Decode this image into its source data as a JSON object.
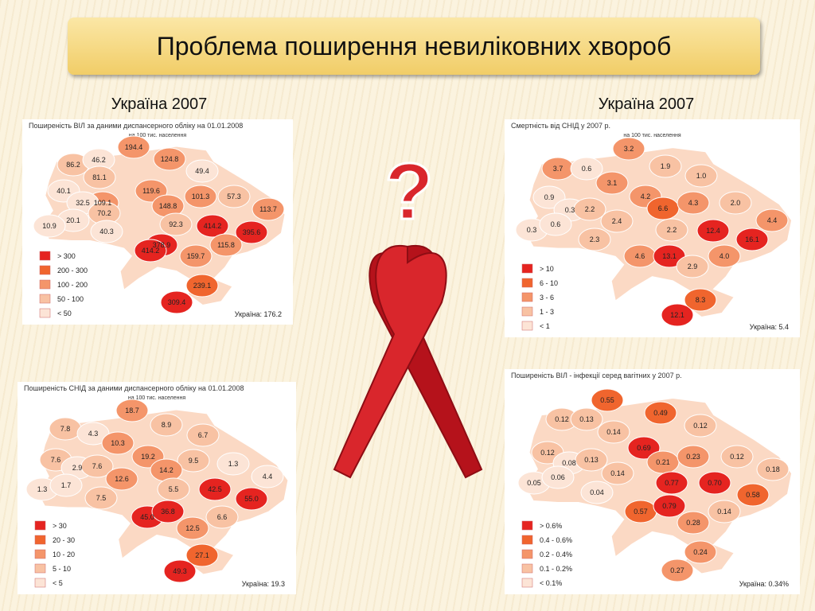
{
  "title": "Проблема поширення невиліковних хвороб",
  "captions": [
    "Україна 2007",
    "Україна 2007"
  ],
  "question_mark": "?",
  "maps": [
    {
      "title": "Поширеність ВІЛ за даними диспансерного обліку на 01.01.2008",
      "subtitle": "на 100 тис. населення",
      "legend": [
        {
          "label": "> 300",
          "color": "#e52420"
        },
        {
          "label": "200 - 300",
          "color": "#f0652e"
        },
        {
          "label": "100 - 200",
          "color": "#f4956a"
        },
        {
          "label": "50 - 100",
          "color": "#f8c2a3"
        },
        {
          "label": "< 50",
          "color": "#fce4d6"
        }
      ],
      "total": "Україна:  176.2",
      "regions": [
        {
          "label": "194.4",
          "color": "#f4956a"
        },
        {
          "label": "86.2",
          "color": "#f8c2a3"
        },
        {
          "label": "46.2",
          "color": "#fce4d6"
        },
        {
          "label": "124.8",
          "color": "#f4956a"
        },
        {
          "label": "49.4",
          "color": "#fce4d6"
        },
        {
          "label": "81.1",
          "color": "#f8c2a3"
        },
        {
          "label": "40.1",
          "color": "#fce4d6"
        },
        {
          "label": "119.6",
          "color": "#f4956a"
        },
        {
          "label": "101.3",
          "color": "#f4956a"
        },
        {
          "label": "57.3",
          "color": "#f8c2a3"
        },
        {
          "label": "109.1",
          "color": "#f4956a"
        },
        {
          "label": "32.5",
          "color": "#fce4d6"
        },
        {
          "label": "148.8",
          "color": "#f4956a"
        },
        {
          "label": "113.7",
          "color": "#f4956a"
        },
        {
          "label": "70.2",
          "color": "#f8c2a3"
        },
        {
          "label": "20.1",
          "color": "#fce4d6"
        },
        {
          "label": "10.9",
          "color": "#fce4d6"
        },
        {
          "label": "40.3",
          "color": "#fce4d6"
        },
        {
          "label": "92.3",
          "color": "#f8c2a3"
        },
        {
          "label": "414.2",
          "color": "#e52420"
        },
        {
          "label": "395.6",
          "color": "#e52420"
        },
        {
          "label": "378.9",
          "color": "#e52420"
        },
        {
          "label": "414.2",
          "color": "#e52420"
        },
        {
          "label": "115.8",
          "color": "#f4956a"
        },
        {
          "label": "159.7",
          "color": "#f4956a"
        },
        {
          "label": "239.1",
          "color": "#f0652e"
        },
        {
          "label": "309.4",
          "color": "#e52420"
        }
      ]
    },
    {
      "title": "Поширеність СНІД  за даними диспансерного обліку на 01.01.2008",
      "subtitle": "на 100 тис. населення",
      "legend": [
        {
          "label": "> 30",
          "color": "#e52420"
        },
        {
          "label": "20 - 30",
          "color": "#f0652e"
        },
        {
          "label": "10 - 20",
          "color": "#f4956a"
        },
        {
          "label": "5 - 10",
          "color": "#f8c2a3"
        },
        {
          "label": "< 5",
          "color": "#fce4d6"
        }
      ],
      "total": "Україна:  19.3",
      "regions": [
        {
          "label": "18.7",
          "color": "#f4956a"
        },
        {
          "label": "7.8",
          "color": "#f8c2a3"
        },
        {
          "label": "4.3",
          "color": "#fce4d6"
        },
        {
          "label": "8.9",
          "color": "#f8c2a3"
        },
        {
          "label": "6.7",
          "color": "#f8c2a3"
        },
        {
          "label": "10.3",
          "color": "#f4956a"
        },
        {
          "label": "19.2",
          "color": "#f4956a"
        },
        {
          "label": "7.6",
          "color": "#f8c2a3"
        },
        {
          "label": "2.9",
          "color": "#fce4d6"
        },
        {
          "label": "7.6",
          "color": "#f8c2a3"
        },
        {
          "label": "9.5",
          "color": "#f8c2a3"
        },
        {
          "label": "1.3",
          "color": "#fce4d6"
        },
        {
          "label": "14.2",
          "color": "#f4956a"
        },
        {
          "label": "4.4",
          "color": "#fce4d6"
        },
        {
          "label": "12.6",
          "color": "#f4956a"
        },
        {
          "label": "1.3",
          "color": "#fce4d6"
        },
        {
          "label": "1.7",
          "color": "#fce4d6"
        },
        {
          "label": "7.5",
          "color": "#f8c2a3"
        },
        {
          "label": "5.5",
          "color": "#f8c2a3"
        },
        {
          "label": "42.5",
          "color": "#e52420"
        },
        {
          "label": "55.0",
          "color": "#e52420"
        },
        {
          "label": "45.0",
          "color": "#e52420"
        },
        {
          "label": "36.8",
          "color": "#e52420"
        },
        {
          "label": "12.5",
          "color": "#f4956a"
        },
        {
          "label": "6.6",
          "color": "#f8c2a3"
        },
        {
          "label": "27.1",
          "color": "#f0652e"
        },
        {
          "label": "49.3",
          "color": "#e52420"
        }
      ]
    },
    {
      "title": "Смертність від СНІД у 2007 р.",
      "subtitle": "на 100 тис. населення",
      "legend": [
        {
          "label": "> 10",
          "color": "#e52420"
        },
        {
          "label": "6 - 10",
          "color": "#f0652e"
        },
        {
          "label": "3 - 6",
          "color": "#f4956a"
        },
        {
          "label": "1 - 3",
          "color": "#f8c2a3"
        },
        {
          "label": "< 1",
          "color": "#fce4d6"
        }
      ],
      "total": "Україна:  5.4",
      "regions": [
        {
          "label": "3.2",
          "color": "#f4956a"
        },
        {
          "label": "3.7",
          "color": "#f4956a"
        },
        {
          "label": "0.6",
          "color": "#fce4d6"
        },
        {
          "label": "1.9",
          "color": "#f8c2a3"
        },
        {
          "label": "1.0",
          "color": "#f8c2a3"
        },
        {
          "label": "3.1",
          "color": "#f4956a"
        },
        {
          "label": "4.2",
          "color": "#f4956a"
        },
        {
          "label": "0.9",
          "color": "#fce4d6"
        },
        {
          "label": "6.6",
          "color": "#f0652e"
        },
        {
          "label": "4.3",
          "color": "#f4956a"
        },
        {
          "label": "2.0",
          "color": "#f8c2a3"
        },
        {
          "label": "0.3",
          "color": "#fce4d6"
        },
        {
          "label": "2.2",
          "color": "#f8c2a3"
        },
        {
          "label": "2.4",
          "color": "#f8c2a3"
        },
        {
          "label": "4.4",
          "color": "#f4956a"
        },
        {
          "label": "0.3",
          "color": "#fce4d6"
        },
        {
          "label": "0.6",
          "color": "#fce4d6"
        },
        {
          "label": "2.2",
          "color": "#f8c2a3"
        },
        {
          "label": "12.4",
          "color": "#e52420"
        },
        {
          "label": "16.1",
          "color": "#e52420"
        },
        {
          "label": "2.3",
          "color": "#f8c2a3"
        },
        {
          "label": "4.6",
          "color": "#f4956a"
        },
        {
          "label": "13.1",
          "color": "#e52420"
        },
        {
          "label": "4.0",
          "color": "#f4956a"
        },
        {
          "label": "2.9",
          "color": "#f8c2a3"
        },
        {
          "label": "8.3",
          "color": "#f0652e"
        },
        {
          "label": "12.1",
          "color": "#e52420"
        }
      ]
    },
    {
      "title": "Поширеність ВІЛ - інфекції серед вагітних у 2007 р.",
      "legend": [
        {
          "label": "> 0.6%",
          "color": "#e52420"
        },
        {
          "label": "0.4 - 0.6%",
          "color": "#f0652e"
        },
        {
          "label": "0.2 - 0.4%",
          "color": "#f4956a"
        },
        {
          "label": "0.1 - 0.2%",
          "color": "#f8c2a3"
        },
        {
          "label": "< 0.1%",
          "color": "#fce4d6"
        }
      ],
      "total": "Україна:  0.34%",
      "regions": [
        {
          "label": "0.55",
          "color": "#f0652e"
        },
        {
          "label": "0.49",
          "color": "#f0652e"
        },
        {
          "label": "0.12",
          "color": "#f8c2a3"
        },
        {
          "label": "0.13",
          "color": "#f8c2a3"
        },
        {
          "label": "0.14",
          "color": "#f8c2a3"
        },
        {
          "label": "0.12",
          "color": "#f8c2a3"
        },
        {
          "label": "0.69",
          "color": "#e52420"
        },
        {
          "label": "0.12",
          "color": "#f8c2a3"
        },
        {
          "label": "0.08",
          "color": "#fce4d6"
        },
        {
          "label": "0.13",
          "color": "#f8c2a3"
        },
        {
          "label": "0.21",
          "color": "#f4956a"
        },
        {
          "label": "0.23",
          "color": "#f4956a"
        },
        {
          "label": "0.12",
          "color": "#f8c2a3"
        },
        {
          "label": "0.05",
          "color": "#fce4d6"
        },
        {
          "label": "0.06",
          "color": "#fce4d6"
        },
        {
          "label": "0.14",
          "color": "#f8c2a3"
        },
        {
          "label": "0.18",
          "color": "#f8c2a3"
        },
        {
          "label": "0.04",
          "color": "#fce4d6"
        },
        {
          "label": "0.77",
          "color": "#e52420"
        },
        {
          "label": "0.70",
          "color": "#e52420"
        },
        {
          "label": "0.58",
          "color": "#f0652e"
        },
        {
          "label": "0.57",
          "color": "#f0652e"
        },
        {
          "label": "0.79",
          "color": "#e52420"
        },
        {
          "label": "0.14",
          "color": "#f8c2a3"
        },
        {
          "label": "0.28",
          "color": "#f4956a"
        },
        {
          "label": "0.24",
          "color": "#f4956a"
        },
        {
          "label": "0.27",
          "color": "#f4956a"
        }
      ]
    }
  ]
}
